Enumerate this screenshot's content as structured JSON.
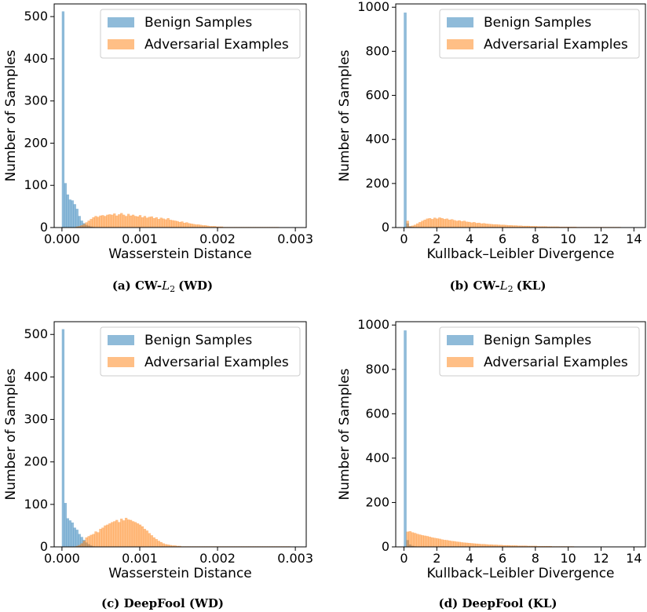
{
  "figure": {
    "colors": {
      "benign": "#1f77b4",
      "adversarial": "#ff7f0e",
      "axis": "#000000"
    },
    "benign_label": "Benign Samples",
    "adversarial_label": "Adversarial Examples"
  },
  "chart_data": [
    {
      "id": "a",
      "type": "bar",
      "caption_prefix": "(a) CW-",
      "caption_math": "L",
      "caption_sub": "2",
      "caption_suffix": "(WD)",
      "xlabel": "Wasserstein Distance",
      "ylabel": "Number of Samples",
      "xlim": [
        -0.0001,
        0.00314
      ],
      "ylim": [
        0,
        530
      ],
      "xticks": [
        0,
        0.001,
        0.002,
        0.003
      ],
      "xtick_labels": [
        "0.000",
        "0.001",
        "0.002",
        "0.003"
      ],
      "yticks": [
        0,
        100,
        200,
        300,
        400,
        500
      ],
      "ytick_labels": [
        "0",
        "100",
        "200",
        "300",
        "400",
        "500"
      ],
      "legend": "top-right",
      "series": [
        {
          "name": "Benign Samples",
          "bin_start": 0,
          "bin_width": 3e-05,
          "values": [
            512,
            105,
            78,
            66,
            64,
            55,
            44,
            27,
            16,
            10,
            6,
            4,
            2,
            1
          ]
        },
        {
          "name": "Adversarial Examples",
          "bin_start": 0.00018,
          "bin_width": 3e-05,
          "values": [
            2,
            3,
            5,
            8,
            12,
            16,
            20,
            24,
            27,
            25,
            28,
            29,
            27,
            30,
            31,
            30,
            33,
            28,
            31,
            34,
            30,
            27,
            32,
            28,
            30,
            27,
            26,
            29,
            24,
            27,
            23,
            25,
            26,
            22,
            24,
            20,
            23,
            21,
            19,
            22,
            18,
            17,
            16,
            15,
            13,
            14,
            11,
            12,
            10,
            9,
            8,
            7,
            7,
            6,
            5,
            5,
            4,
            3,
            3,
            3,
            2,
            2,
            2,
            1,
            1,
            1,
            1,
            1,
            1,
            1,
            1,
            1,
            1,
            1,
            1,
            1,
            1,
            1,
            1,
            1,
            1,
            1,
            1,
            1,
            1,
            1,
            1
          ]
        }
      ]
    },
    {
      "id": "b",
      "type": "bar",
      "caption_prefix": "(b) CW-",
      "caption_math": "L",
      "caption_sub": "2",
      "caption_suffix": "(KL)",
      "xlabel": "Kullback–Leibler Divergence",
      "ylabel": "Number of Samples",
      "xlim": [
        -0.5,
        14.7
      ],
      "ylim": [
        0,
        1015
      ],
      "xticks": [
        0,
        2,
        4,
        6,
        8,
        10,
        12,
        14
      ],
      "xtick_labels": [
        "0",
        "2",
        "4",
        "6",
        "8",
        "10",
        "12",
        "14"
      ],
      "yticks": [
        0,
        200,
        400,
        600,
        800,
        1000
      ],
      "ytick_labels": [
        "0",
        "200",
        "400",
        "600",
        "800",
        "1000"
      ],
      "legend": "top-right",
      "series": [
        {
          "name": "Benign Samples",
          "bin_start": 0,
          "bin_width": 0.15,
          "values": [
            975,
            18,
            5,
            2,
            1
          ]
        },
        {
          "name": "Adversarial Examples",
          "bin_start": 0.15,
          "bin_width": 0.15,
          "values": [
            30,
            5,
            8,
            12,
            18,
            24,
            30,
            35,
            40,
            42,
            38,
            44,
            40,
            45,
            42,
            38,
            40,
            35,
            37,
            33,
            30,
            32,
            28,
            30,
            26,
            25,
            22,
            24,
            20,
            21,
            18,
            19,
            17,
            16,
            15,
            14,
            14,
            13,
            12,
            12,
            11,
            10,
            10,
            9,
            9,
            8,
            8,
            7,
            7,
            7,
            6,
            6,
            6,
            5,
            5,
            5,
            5,
            4,
            4,
            4,
            4,
            4,
            3,
            3,
            3,
            3,
            3,
            3,
            3,
            2,
            2,
            2,
            2,
            2,
            2,
            2,
            2,
            2,
            2,
            2,
            2,
            2,
            2,
            2,
            2,
            2,
            2,
            1,
            1,
            1,
            1,
            1
          ]
        }
      ]
    },
    {
      "id": "c",
      "type": "bar",
      "caption_prefix": "(c) DeepFool (WD)",
      "caption_math": "",
      "caption_sub": "",
      "caption_suffix": "",
      "xlabel": "Wasserstein Distance",
      "ylabel": "Number of Samples",
      "xlim": [
        -0.0001,
        0.00314
      ],
      "ylim": [
        0,
        530
      ],
      "xticks": [
        0,
        0.001,
        0.002,
        0.003
      ],
      "xtick_labels": [
        "0.000",
        "0.001",
        "0.002",
        "0.003"
      ],
      "yticks": [
        0,
        100,
        200,
        300,
        400,
        500
      ],
      "ytick_labels": [
        "0",
        "100",
        "200",
        "300",
        "400",
        "500"
      ],
      "legend": "top-right",
      "series": [
        {
          "name": "Benign Samples",
          "bin_start": 0,
          "bin_width": 3e-05,
          "values": [
            512,
            103,
            67,
            62,
            57,
            45,
            40,
            30,
            23,
            16,
            10,
            6,
            3,
            1
          ]
        },
        {
          "name": "Adversarial Examples",
          "bin_start": 0.00018,
          "bin_width": 3e-05,
          "values": [
            2,
            4,
            8,
            14,
            22,
            25,
            28,
            30,
            36,
            34,
            42,
            45,
            50,
            52,
            55,
            58,
            60,
            63,
            58,
            66,
            62,
            68,
            64,
            63,
            60,
            58,
            55,
            52,
            48,
            42,
            38,
            32,
            27,
            22,
            18,
            14,
            11,
            8,
            6,
            5,
            4,
            3,
            3,
            2,
            2,
            1,
            1,
            1,
            1,
            1,
            1,
            1,
            1,
            1,
            1,
            1,
            1,
            1,
            1,
            1,
            1,
            1,
            1,
            1,
            1,
            1,
            1,
            1,
            1,
            1,
            1,
            1,
            1,
            1,
            1,
            1,
            1,
            1,
            1,
            1,
            1,
            1,
            1,
            1,
            1,
            1,
            1,
            1,
            1,
            1,
            1,
            1
          ]
        }
      ]
    },
    {
      "id": "d",
      "type": "bar",
      "caption_prefix": "(d) DeepFool (KL)",
      "caption_math": "",
      "caption_sub": "",
      "caption_suffix": "",
      "xlabel": "Kullback–Leibler Divergence",
      "ylabel": "Number of Samples",
      "xlim": [
        -0.5,
        14.7
      ],
      "ylim": [
        0,
        1015
      ],
      "xticks": [
        0,
        2,
        4,
        6,
        8,
        10,
        12,
        14
      ],
      "xtick_labels": [
        "0",
        "2",
        "4",
        "6",
        "8",
        "10",
        "12",
        "14"
      ],
      "yticks": [
        0,
        200,
        400,
        600,
        800,
        1000
      ],
      "ytick_labels": [
        "0",
        "200",
        "400",
        "600",
        "800",
        "1000"
      ],
      "legend": "top-right",
      "series": [
        {
          "name": "Benign Samples",
          "bin_start": 0,
          "bin_width": 0.15,
          "values": [
            975,
            30,
            10,
            4,
            2
          ]
        },
        {
          "name": "Adversarial Examples",
          "bin_start": 0.15,
          "bin_width": 0.15,
          "values": [
            68,
            70,
            65,
            62,
            58,
            55,
            52,
            50,
            48,
            45,
            42,
            40,
            38,
            36,
            33,
            31,
            30,
            28,
            26,
            25,
            23,
            22,
            20,
            19,
            18,
            17,
            16,
            15,
            14,
            13,
            12,
            12,
            11,
            10,
            10,
            9,
            9,
            8,
            8,
            7,
            7,
            7,
            6,
            6,
            6,
            5,
            5,
            5,
            5,
            4,
            4,
            4,
            4,
            3,
            3,
            3,
            3,
            3,
            3,
            2,
            2,
            2,
            2,
            2,
            2,
            2,
            2,
            2,
            1,
            1,
            1,
            1,
            1,
            1,
            1,
            1,
            1,
            1,
            1,
            1,
            1,
            1,
            1,
            1,
            1,
            1,
            1,
            1,
            1,
            1,
            1,
            1
          ]
        }
      ]
    }
  ]
}
